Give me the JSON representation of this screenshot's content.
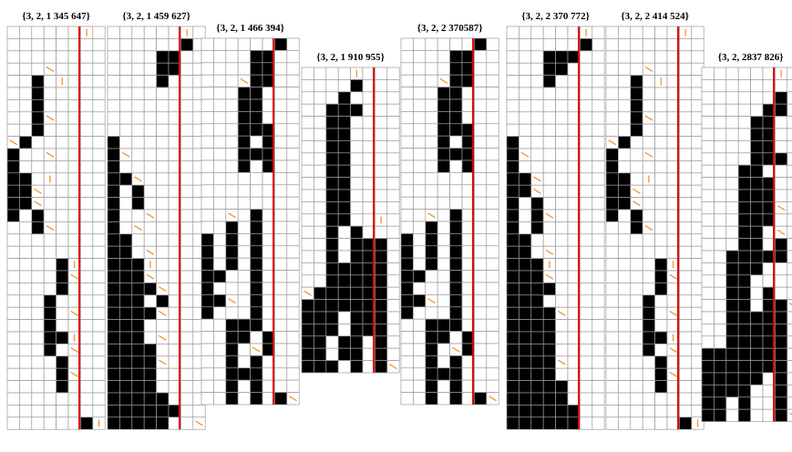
{
  "panels": [
    {
      "label": "{3, 2, 1 345 647}",
      "rows": [
        "......h.",
        "........",
        "........",
        "...d....",
        "..B.h...",
        "..B.....",
        "..B.....",
        "..Bd....",
        "..B.....",
        "dB......",
        "B..d....",
        "B.......",
        "BB.h....",
        "BBd.....",
        "BBd.....",
        "B.B.....",
        "..Bd....",
        "........",
        "........",
        "....Bh..",
        "....Bd..",
        "....B...",
        "...B....",
        "...B.d..",
        "...B....",
        "...BBh..",
        "...B.d..",
        "....B...",
        "....Bd..",
        "....B...",
        "........",
        "........",
        "......Bh"
      ]
    },
    {
      "label": "{3, 2, 1 459 627}",
      "rows": [
        "......h.",
        "......B.",
        "....BB..",
        "....BB..",
        "....B...",
        "........",
        "........",
        "........",
        "........",
        "B.......",
        "Bd......",
        "B.......",
        "BBd.....",
        "B.B.....",
        "B.B.....",
        "B..d....",
        "B.d.....",
        "BB......",
        "BB.d....",
        "BBBh....",
        "BBBd....",
        "BBBBd...",
        "BBB.B...",
        "BBBBd...",
        "BBB.....",
        "BBB.d...",
        "BBBB....",
        "BBBBd...",
        "BBBB....",
        "BBBB....",
        "BBBBB...",
        "BBBBBB..",
        "BBBBB..d"
      ]
    },
    {
      "label": "{3, 2, 1 466 394}",
      "rows": [
        "......B.",
        "....BB..",
        "....BB..",
        "...dBB..",
        "...BB...",
        "...BB...",
        "...BB...",
        "...BBB..",
        "...B.B..",
        "...BBB..",
        "...B.B..",
        "........",
        "........",
        "........",
        "..d.B...",
        "..B.B...",
        "B.B.B...",
        "B.B.B...",
        "B.B.B...",
        "BB..B...",
        "B...B...",
        "BBd.B...",
        "B...B...",
        "..BBB...",
        "..BB.B..",
        "..B.dB..",
        "..B.B...",
        "..BBB...",
        "..B.B...",
        "..B.B.Bd"
      ]
    },
    {
      "label": "{3, 2, 1 910 955}",
      "rows": [
        "....h...",
        "....B...",
        "...B....",
        "..BBB...",
        "..BB....",
        "..BB....",
        "..BB....",
        "..BB....",
        "..BB....",
        "..BB....",
        "..BB....",
        "..BB....",
        "..BB..h.",
        "..B.B...",
        "..B.BBB.",
        "..B.BBB.",
        "..BBBBB.",
        "..BBBBB.",
        "dBBBBBB.",
        "BBBBBBB.",
        "BBB.BBB.",
        "BBB.BBB.",
        "BB.BB.B.",
        "BB.BB.B.",
        "BBB.B.Bd"
      ]
    },
    {
      "label": "{3, 2, 2 370587}",
      "rows": [
        "......B.",
        "....BB..",
        "....BB..",
        "...dBB..",
        "...BB...",
        "...BB...",
        "...BB...",
        "...BBB..",
        "...B.B..",
        "...BBB..",
        "...B.B..",
        "........",
        "........",
        "........",
        "..d.B...",
        "..B.B...",
        "B.B.B...",
        "B.B.B...",
        "B.B.B...",
        "BB..B...",
        "B...B...",
        "BBd.B...",
        "B...B...",
        "..BBB...",
        "..BB.B..",
        "..B.dB..",
        "..B.B...",
        "..BBB...",
        "..B.B...",
        "..B.B.Bd"
      ]
    },
    {
      "label": "{3, 2, 2 370 772}",
      "rows": [
        "......h.",
        "......B.",
        "...BBB..",
        "...BB...",
        "...B....",
        "........",
        "........",
        "........",
        "........",
        "B.......",
        "Bd......",
        "B.......",
        "BBd.....",
        "BBd.....",
        "B.B.....",
        "B.Bd....",
        "B.B.....",
        "BB......",
        "BB.d....",
        "BBBh....",
        "BBBd....",
        "BBBB....",
        "BBB.....",
        "BBBBd...",
        "BBBB....",
        "BBBB....",
        "BBBB....",
        "BBBBd...",
        "BBBB....",
        "BBBBB...",
        "BBBBB...",
        "BBBBBB..",
        "BBBBBB.."
      ]
    },
    {
      "label": "{3, 2, 2 414 524}",
      "rows": [
        "......h.",
        "........",
        "........",
        "...d....",
        "..B.h...",
        "..B.....",
        "..B.....",
        "..Bd....",
        "..B.....",
        "dB......",
        "B..d....",
        "B.......",
        "BB.h....",
        "BBd.....",
        "BBd.....",
        "B.B.....",
        "..Bd....",
        "........",
        "........",
        "....Bh..",
        "....Bd..",
        "....B...",
        "...B....",
        "...B.d..",
        "...B....",
        "...BBh..",
        "...B.d..",
        "....B...",
        "....Bd..",
        "....B...",
        "........",
        "........",
        "......Bh"
      ]
    },
    {
      "label": "{3, 2, 2837 826}",
      "rows": [
        "......h.",
        "........",
        "......B.",
        ".....BB.",
        "....BB..",
        "....BB..",
        "....BB..",
        "....BBB.",
        "...BB...",
        "...BBB..",
        "...BBB..",
        "...BBBd.",
        "...BBB..",
        "...BB.d.",
        "...BB.B.",
        "..BBBBB.",
        "..BBB...",
        "..BB....",
        "..BB.B..",
        "..BB.BBd",
        "..BBBBB.",
        "..BBBBB.",
        "..BBBBB.",
        "BBBBBBB.",
        "BBBBBBB.",
        "BBBBB.B.",
        "BBBB..B.",
        "BB.B..B.",
        "BB.B..Bd"
      ]
    }
  ]
}
